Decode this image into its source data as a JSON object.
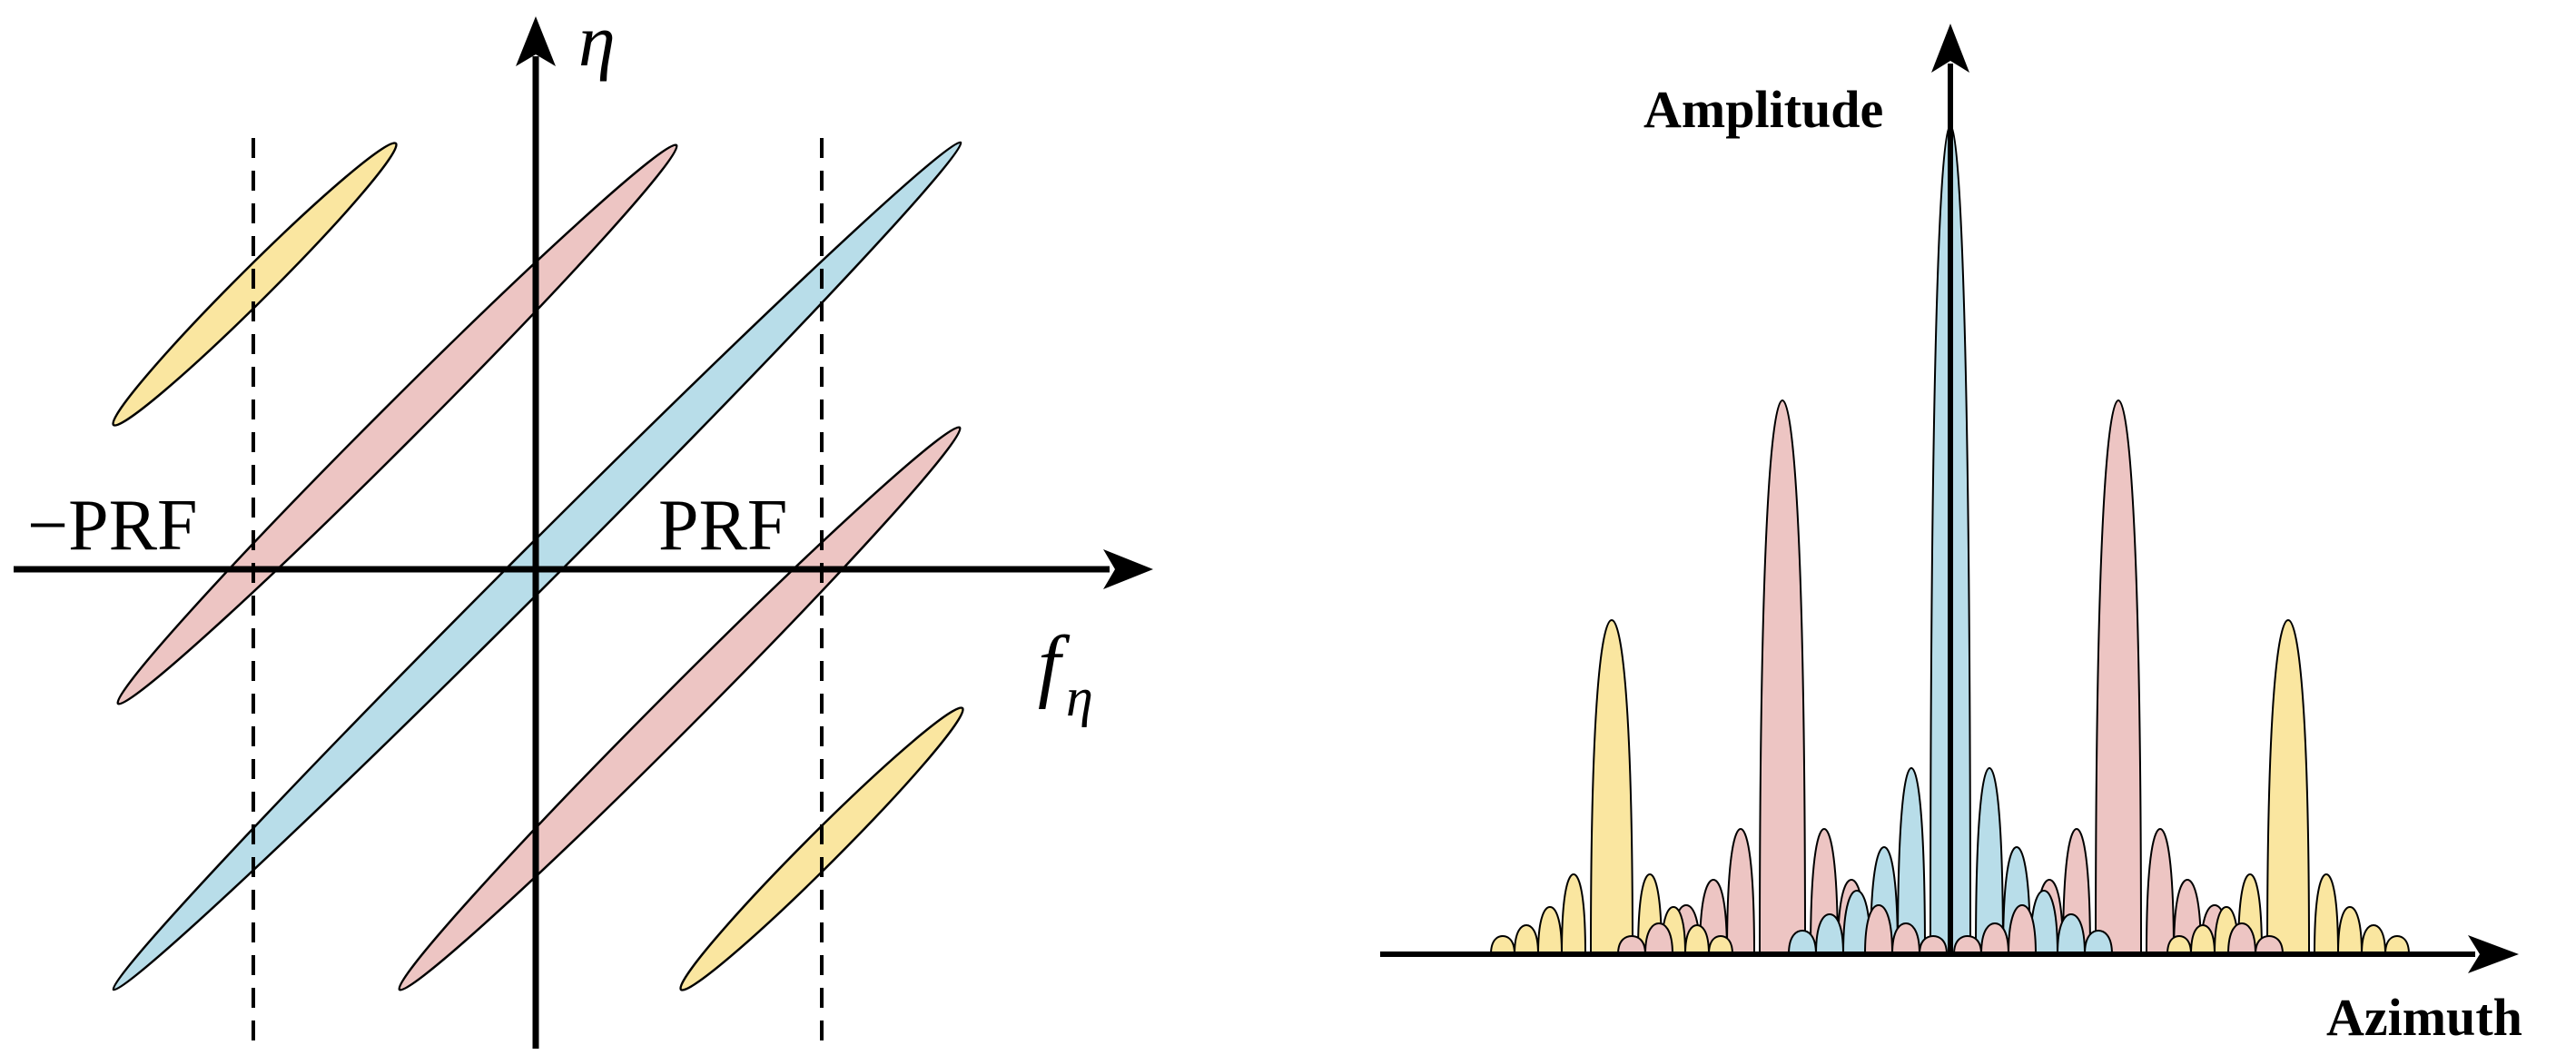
{
  "left_diagram": {
    "vertical_axis_label": "η",
    "horizontal_axis_label_base": "f",
    "horizontal_axis_label_sub": "η",
    "neg_prf_label": "−PRF",
    "prf_label": "PRF"
  },
  "right_diagram": {
    "y_axis_label": "Amplitude",
    "x_axis_label": "Azimuth"
  },
  "colors": {
    "yellow": "#FAE6A0",
    "pink": "#EDC5C3",
    "blue": "#B8DDE9",
    "stroke": "#000000"
  }
}
